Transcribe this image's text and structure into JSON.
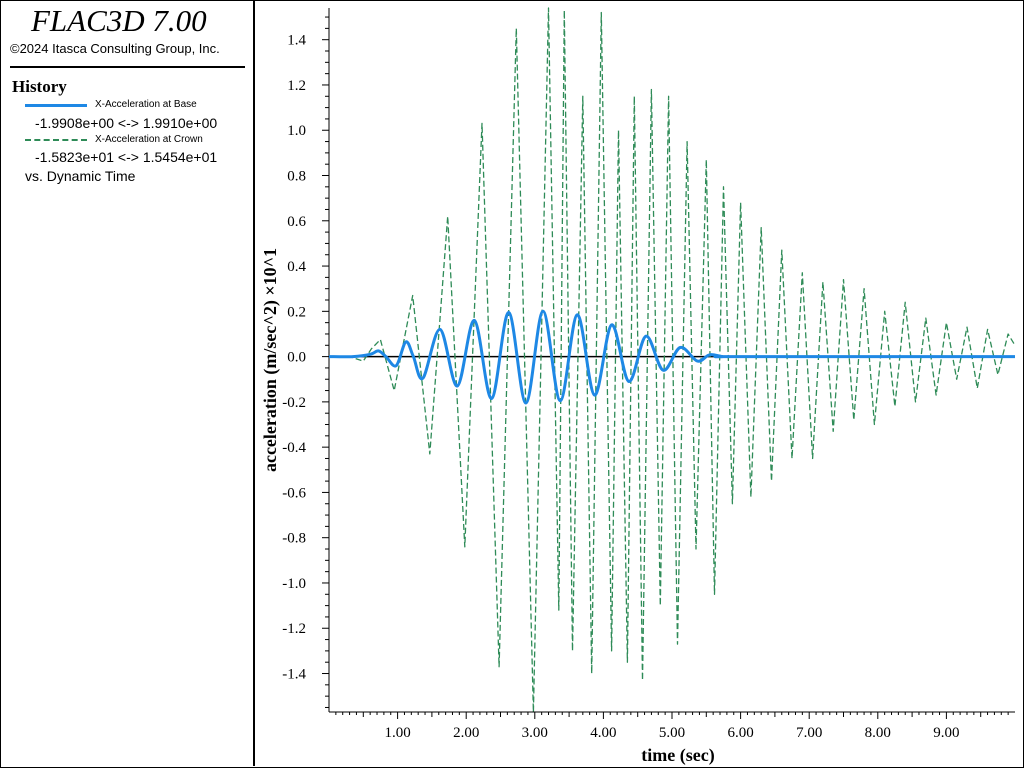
{
  "app": {
    "title": "FLAC3D 7.00",
    "copyright": "©2024 Itasca Consulting Group, Inc."
  },
  "legend": {
    "heading": "History",
    "series": [
      {
        "name": "X-Acceleration at Base",
        "range_min": "-1.9908e+00",
        "range_max": "1.9910e+00",
        "range_sep": "<->",
        "color": "#1e88e5",
        "style": "solid"
      },
      {
        "name": "X-Acceleration at Crown",
        "range_min": "-1.5823e+01",
        "range_max": "1.5454e+01",
        "range_sep": "<->",
        "color": "#2e8b57",
        "style": "dashed"
      }
    ],
    "vs_label": "vs. Dynamic Time"
  },
  "chart_data": {
    "type": "line",
    "xlabel": "time (sec)",
    "ylabel": "acceleration (m/sec^2) ×10^1",
    "xlim": [
      0,
      10
    ],
    "ylim": [
      -1.57,
      1.54
    ],
    "x_ticks": [
      1,
      2,
      3,
      4,
      5,
      6,
      7,
      8,
      9
    ],
    "x_tick_labels": [
      "1.00",
      "2.00",
      "3.00",
      "4.00",
      "5.00",
      "6.00",
      "7.00",
      "8.00",
      "9.00"
    ],
    "y_ticks": [
      -1.4,
      -1.2,
      -1.0,
      -0.8,
      -0.6,
      -0.4,
      -0.2,
      0.0,
      0.2,
      0.4,
      0.6,
      0.8,
      1.0,
      1.2,
      1.4
    ],
    "y_tick_labels": [
      "-1.4",
      "-1.2",
      "-1.0",
      "-0.8",
      "-0.6",
      "-0.4",
      "-0.2",
      "0.0",
      "0.2",
      "0.4",
      "0.6",
      "0.8",
      "1.0",
      "1.2",
      "1.4"
    ],
    "zero_line": true,
    "grid": false,
    "series": [
      {
        "name": "X-Acceleration at Base",
        "color": "#1e88e5",
        "dash": false,
        "x": [
          0.0,
          0.35,
          0.6,
          0.72,
          0.83,
          0.98,
          1.12,
          1.23,
          1.37,
          1.62,
          1.87,
          2.12,
          2.37,
          2.62,
          2.87,
          3.12,
          3.37,
          3.62,
          3.87,
          4.12,
          4.37,
          4.62,
          4.87,
          5.12,
          5.37,
          5.55,
          5.75,
          6.0,
          10.0
        ],
        "y": [
          0.0,
          0.0,
          0.01,
          0.025,
          0.0,
          -0.04,
          0.065,
          0.0,
          -0.095,
          0.12,
          -0.13,
          0.16,
          -0.185,
          0.195,
          -0.205,
          0.2,
          -0.195,
          0.185,
          -0.17,
          0.14,
          -0.11,
          0.09,
          -0.06,
          0.04,
          -0.02,
          0.008,
          0.0,
          0.0,
          0.0
        ]
      },
      {
        "name": "X-Acceleration at Crown",
        "color": "#2e8b57",
        "dash": true,
        "x": [
          0.0,
          0.3,
          0.5,
          0.62,
          0.75,
          0.95,
          1.22,
          1.47,
          1.73,
          1.98,
          2.23,
          2.48,
          2.73,
          2.98,
          3.2,
          3.35,
          3.43,
          3.55,
          3.7,
          3.83,
          3.97,
          4.12,
          4.22,
          4.35,
          4.45,
          4.57,
          4.7,
          4.83,
          4.95,
          5.08,
          5.22,
          5.35,
          5.5,
          5.62,
          5.75,
          5.88,
          6.0,
          6.15,
          6.3,
          6.45,
          6.6,
          6.75,
          6.9,
          7.05,
          7.2,
          7.35,
          7.5,
          7.65,
          7.8,
          7.95,
          8.1,
          8.25,
          8.4,
          8.55,
          8.7,
          8.85,
          9.0,
          9.15,
          9.3,
          9.45,
          9.6,
          9.75,
          9.9,
          10.0
        ],
        "y": [
          0.0,
          0.0,
          -0.02,
          0.035,
          0.075,
          -0.15,
          0.27,
          -0.43,
          0.62,
          -0.84,
          1.03,
          -1.37,
          1.45,
          -1.57,
          1.54,
          -1.12,
          1.53,
          -1.3,
          1.15,
          -1.4,
          1.52,
          -1.3,
          1.0,
          -1.35,
          1.15,
          -1.43,
          1.18,
          -1.1,
          1.15,
          -1.27,
          0.95,
          -0.85,
          0.87,
          -1.05,
          0.75,
          -0.65,
          0.68,
          -0.62,
          0.57,
          -0.55,
          0.47,
          -0.45,
          0.37,
          -0.45,
          0.33,
          -0.33,
          0.34,
          -0.28,
          0.3,
          -0.3,
          0.2,
          -0.22,
          0.24,
          -0.2,
          0.17,
          -0.17,
          0.15,
          -0.1,
          0.13,
          -0.14,
          0.12,
          -0.08,
          0.1,
          0.05
        ]
      }
    ]
  }
}
